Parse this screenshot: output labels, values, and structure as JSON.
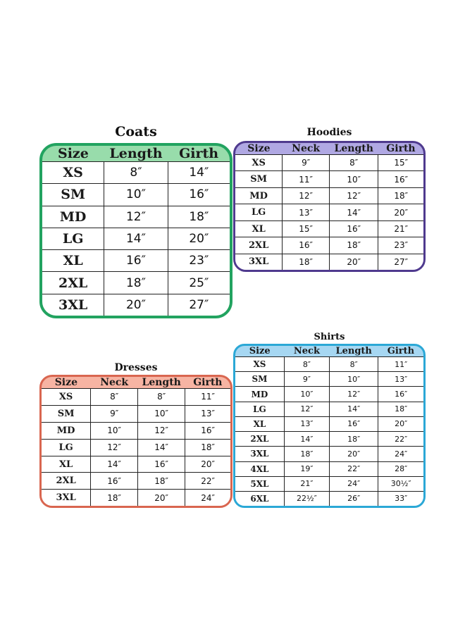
{
  "chart_data": [
    {
      "type": "table",
      "title": "Coats",
      "columns": [
        "Size",
        "Length",
        "Girth"
      ],
      "rows": [
        [
          "XS",
          "8″",
          "14″"
        ],
        [
          "SM",
          "10″",
          "16″"
        ],
        [
          "MD",
          "12″",
          "18″"
        ],
        [
          "LG",
          "14″",
          "20″"
        ],
        [
          "XL",
          "16″",
          "23″"
        ],
        [
          "2XL",
          "18″",
          "25″"
        ],
        [
          "3XL",
          "20″",
          "27″"
        ]
      ],
      "colors": {
        "border": "#22a360",
        "fill": "#98dcab"
      }
    },
    {
      "type": "table",
      "title": "Hoodies",
      "columns": [
        "Size",
        "Neck",
        "Length",
        "Girth"
      ],
      "rows": [
        [
          "XS",
          "9″",
          "8″",
          "15″"
        ],
        [
          "SM",
          "11″",
          "10″",
          "16″"
        ],
        [
          "MD",
          "12″",
          "12″",
          "18″"
        ],
        [
          "LG",
          "13″",
          "14″",
          "20″"
        ],
        [
          "XL",
          "15″",
          "16″",
          "21″"
        ],
        [
          "2XL",
          "16″",
          "18″",
          "23″"
        ],
        [
          "3XL",
          "18″",
          "20″",
          "27″"
        ]
      ],
      "colors": {
        "border": "#4f3a8e",
        "fill": "#b0a8e3"
      }
    },
    {
      "type": "table",
      "title": "Dresses",
      "columns": [
        "Size",
        "Neck",
        "Length",
        "Girth"
      ],
      "rows": [
        [
          "XS",
          "8″",
          "8″",
          "11″"
        ],
        [
          "SM",
          "9″",
          "10″",
          "13″"
        ],
        [
          "MD",
          "10″",
          "12″",
          "16″"
        ],
        [
          "LG",
          "12″",
          "14″",
          "18″"
        ],
        [
          "XL",
          "14″",
          "16″",
          "20″"
        ],
        [
          "2XL",
          "16″",
          "18″",
          "22″"
        ],
        [
          "3XL",
          "18″",
          "20″",
          "24″"
        ]
      ],
      "colors": {
        "border": "#d96650",
        "fill": "#f7b4a3"
      }
    },
    {
      "type": "table",
      "title": "Shirts",
      "columns": [
        "Size",
        "Neck",
        "Length",
        "Girth"
      ],
      "rows": [
        [
          "XS",
          "8″",
          "8″",
          "11″"
        ],
        [
          "SM",
          "9″",
          "10″",
          "13″"
        ],
        [
          "MD",
          "10″",
          "12″",
          "16″"
        ],
        [
          "LG",
          "12″",
          "14″",
          "18″"
        ],
        [
          "XL",
          "13″",
          "16″",
          "20″"
        ],
        [
          "2XL",
          "14″",
          "18″",
          "22″"
        ],
        [
          "3XL",
          "18″",
          "20″",
          "24″"
        ],
        [
          "4XL",
          "19″",
          "22″",
          "28″"
        ],
        [
          "5XL",
          "21″",
          "24″",
          "30½″"
        ],
        [
          "6XL",
          "22½″",
          "26″",
          "33″"
        ]
      ],
      "colors": {
        "border": "#2ba8d6",
        "fill": "#a6d7f2"
      }
    }
  ]
}
